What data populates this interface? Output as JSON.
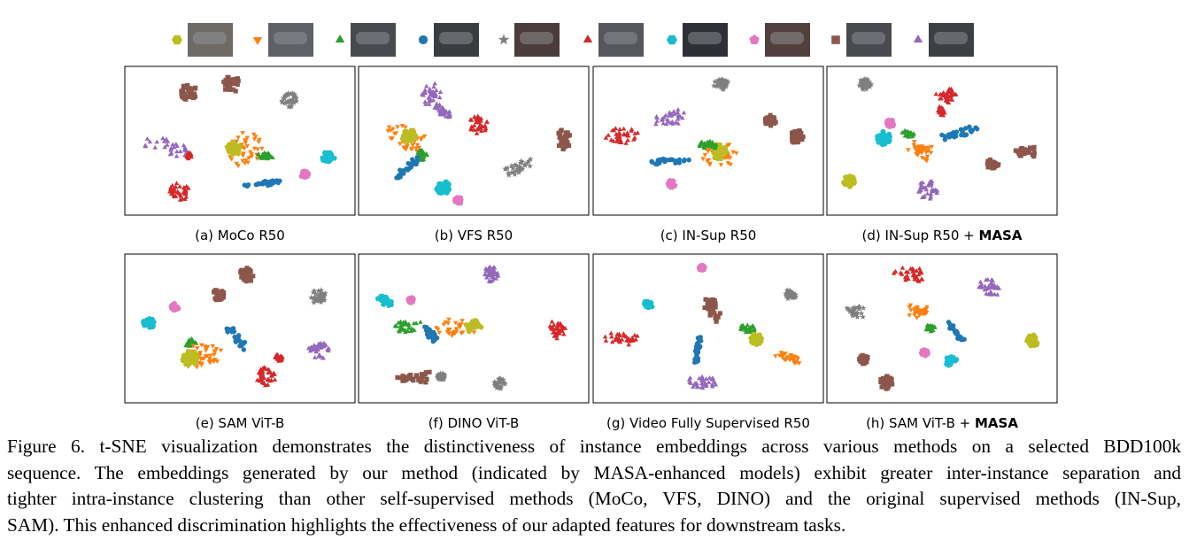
{
  "figure": {
    "panels": [
      [
        {
          "text": "(a) MoCo R50"
        }
      ],
      [
        {
          "text": "(b) VFS R50"
        }
      ],
      [
        {
          "text": "(c) IN-Sup R50"
        }
      ],
      [
        {
          "text": "(d) IN-Sup R50 + "
        },
        {
          "text": "MASA",
          "bold": true
        }
      ],
      [
        {
          "text": "(e) SAM ViT-B"
        }
      ],
      [
        {
          "text": "(f) DINO ViT-B"
        }
      ],
      [
        {
          "text": "(g) Video Fully Supervised R50"
        }
      ],
      [
        {
          "text": "(h) SAM ViT-B + "
        },
        {
          "text": "MASA",
          "bold": true
        }
      ]
    ],
    "caption_lines": [
      "Figure 6. t-SNE visualization demonstrates the distinctiveness of instance embeddings across various methods on a selected BDD100k",
      "sequence. The embeddings generated by our method (indicated by MASA-enhanced models) exhibit greater inter-instance separation and",
      "tighter intra-instance clustering than other self-supervised methods (MoCo, VFS, DINO) and the original supervised methods (IN-Sup,",
      "SAM). This enhanced discrimination highlights the effectiveness of our adapted features for downstream tasks."
    ]
  }
}
